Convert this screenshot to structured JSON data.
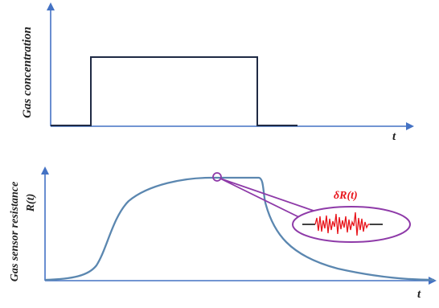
{
  "top_plot": {
    "y_label": "Gas concentration",
    "x_label": "t"
  },
  "bottom_plot": {
    "y_label_line1": "Gas sensor resistance",
    "y_label_line2": "R(t)",
    "x_label": "t",
    "callout_label": "δR(t)"
  },
  "colors": {
    "axis": "#4472c4",
    "pulse": "#1f2a44",
    "response_curve": "#5b87b0",
    "callout": "#8e3aa8",
    "noise": "#e8141b",
    "noise_label": "#e8141b"
  }
}
